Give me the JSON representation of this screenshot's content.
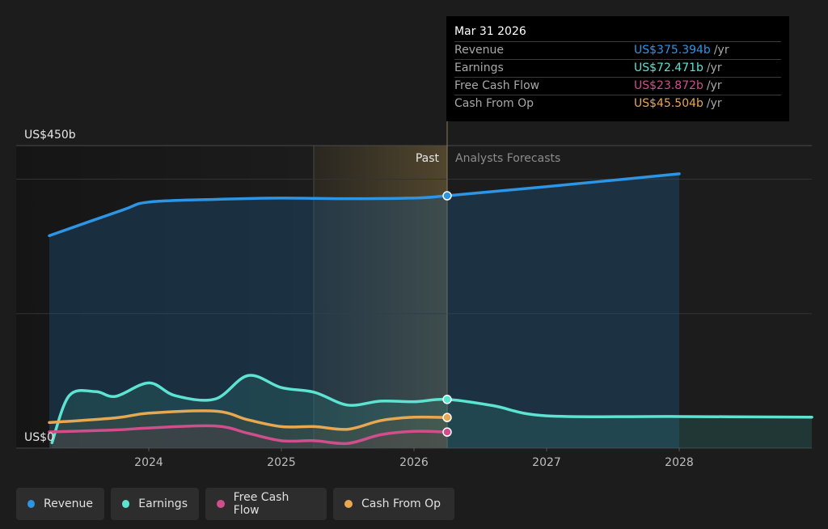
{
  "chart_data": {
    "type": "area",
    "y_axis": {
      "top_label": "US$450b",
      "bottom_label": "US$0",
      "ylim": [
        0,
        450
      ]
    },
    "x_axis": {
      "tick_labels": [
        "2024",
        "2025",
        "2026",
        "2027",
        "2028"
      ]
    },
    "regions": {
      "past_label": "Past",
      "forecast_label": "Analysts Forecasts"
    },
    "series": [
      {
        "name": "Revenue",
        "color": "#2d95e3",
        "values": [
          [
            2023.25,
            316
          ],
          [
            2023.8,
            354
          ],
          [
            2024.0,
            366
          ],
          [
            2024.5,
            370
          ],
          [
            2025.0,
            372
          ],
          [
            2025.5,
            371
          ],
          [
            2026.0,
            372
          ],
          [
            2026.25,
            375.394
          ],
          [
            2027.0,
            389
          ],
          [
            2028.0,
            408
          ]
        ]
      },
      {
        "name": "Earnings",
        "color": "#5de3d2",
        "values": [
          [
            2023.27,
            8
          ],
          [
            2023.4,
            78
          ],
          [
            2023.6,
            84
          ],
          [
            2023.75,
            77
          ],
          [
            2024.0,
            97
          ],
          [
            2024.2,
            78
          ],
          [
            2024.5,
            73
          ],
          [
            2024.75,
            108
          ],
          [
            2025.0,
            90
          ],
          [
            2025.25,
            83
          ],
          [
            2025.5,
            64
          ],
          [
            2025.75,
            70
          ],
          [
            2026.0,
            69
          ],
          [
            2026.25,
            72.471
          ],
          [
            2026.6,
            63
          ],
          [
            2027.0,
            48
          ],
          [
            2028.0,
            47
          ],
          [
            2029.0,
            46
          ]
        ]
      },
      {
        "name": "Free Cash Flow",
        "color": "#d14e8c",
        "values": [
          [
            2023.25,
            24
          ],
          [
            2023.75,
            27
          ],
          [
            2024.0,
            30
          ],
          [
            2024.5,
            33
          ],
          [
            2024.75,
            22
          ],
          [
            2025.0,
            11
          ],
          [
            2025.25,
            11
          ],
          [
            2025.5,
            7
          ],
          [
            2025.75,
            20
          ],
          [
            2026.0,
            25
          ],
          [
            2026.25,
            23.872
          ]
        ]
      },
      {
        "name": "Cash From Op",
        "color": "#e8a852",
        "values": [
          [
            2023.25,
            38
          ],
          [
            2023.75,
            45
          ],
          [
            2024.0,
            52
          ],
          [
            2024.5,
            55
          ],
          [
            2024.75,
            42
          ],
          [
            2025.0,
            32
          ],
          [
            2025.25,
            32
          ],
          [
            2025.5,
            28
          ],
          [
            2025.75,
            41
          ],
          [
            2026.0,
            46
          ],
          [
            2026.25,
            45.504
          ]
        ]
      }
    ],
    "marker_date": 2026.25
  },
  "tooltip": {
    "date": "Mar 31 2026",
    "rows": [
      {
        "label": "Revenue",
        "value": "US$375.394b",
        "unit": "/yr",
        "color": "#2d95e3"
      },
      {
        "label": "Earnings",
        "value": "US$72.471b",
        "unit": "/yr",
        "color": "#5de3d2"
      },
      {
        "label": "Free Cash Flow",
        "value": "US$23.872b",
        "unit": "/yr",
        "color": "#d14e8c"
      },
      {
        "label": "Cash From Op",
        "value": "US$45.504b",
        "unit": "/yr",
        "color": "#e8a852"
      }
    ]
  },
  "legend": [
    {
      "label": "Revenue",
      "color": "#2d95e3"
    },
    {
      "label": "Earnings",
      "color": "#5de3d2"
    },
    {
      "label": "Free Cash Flow",
      "color": "#d14e8c"
    },
    {
      "label": "Cash From Op",
      "color": "#e8a852"
    }
  ]
}
